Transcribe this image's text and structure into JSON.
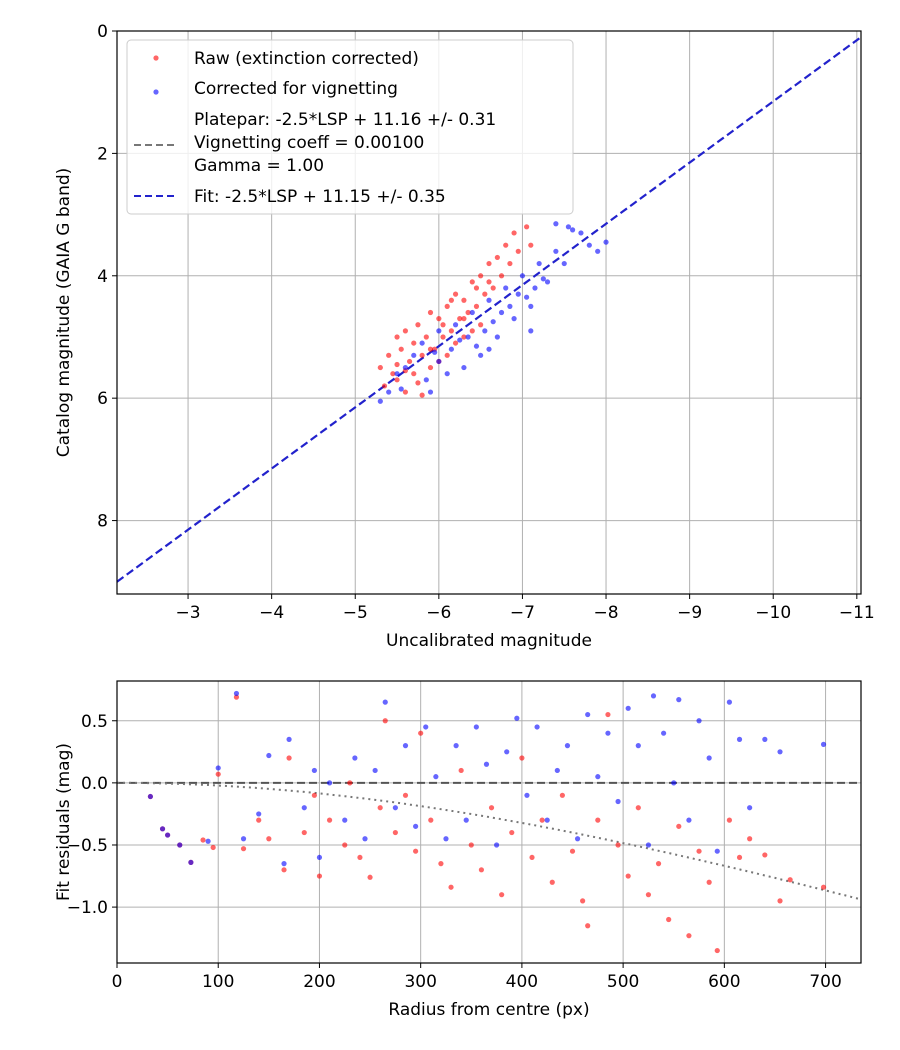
{
  "colors": {
    "raw": "#ff0000",
    "corrected": "#0000ff",
    "fit": "#2222cc",
    "platepar": "#777777",
    "grid": "#b0b0b0"
  },
  "chart_data": [
    {
      "type": "scatter",
      "xlabel": "Uncalibrated magnitude",
      "ylabel": "Catalog magnitude (GAIA G band)",
      "xlim": [
        -2.15,
        -11.05
      ],
      "ylim": [
        9.2,
        0
      ],
      "x_inverted": true,
      "y_inverted": true,
      "grid": true,
      "legend_position": "top-left",
      "xticks": [
        -3,
        -4,
        -5,
        -6,
        -7,
        -8,
        -9,
        -10,
        -11
      ],
      "xtick_labels": [
        "−3",
        "−4",
        "−5",
        "−6",
        "−7",
        "−8",
        "−9",
        "−10",
        "−11"
      ],
      "yticks": [
        0,
        2,
        4,
        6,
        8
      ],
      "ytick_labels": [
        "0",
        "2",
        "4",
        "6",
        "8"
      ],
      "legend": {
        "raw": "Raw (extinction corrected)",
        "corrected": "Corrected for vignetting",
        "platepar": [
          "Platepar: -2.5*LSP + 11.16 +/- 0.31",
          "Vignetting coeff = 0.00100",
          "Gamma = 1.00"
        ],
        "fit": "Fit: -2.5*LSP + 11.15 +/- 0.35"
      },
      "platepar_line": {
        "intercept": 11.16,
        "slope": 1.0,
        "sigma": 0.31
      },
      "fit_line": {
        "intercept": 11.15,
        "slope": 1.0,
        "sigma": 0.35
      },
      "series": [
        {
          "name": "Raw (extinction corrected)",
          "color": "#ff0000",
          "points": [
            [
              -5.3,
              5.5
            ],
            [
              -5.35,
              5.8
            ],
            [
              -5.4,
              5.3
            ],
            [
              -5.45,
              5.6
            ],
            [
              -5.5,
              5.0
            ],
            [
              -5.5,
              5.7
            ],
            [
              -5.55,
              5.2
            ],
            [
              -5.6,
              5.9
            ],
            [
              -5.6,
              4.9
            ],
            [
              -5.65,
              5.4
            ],
            [
              -5.7,
              5.1
            ],
            [
              -5.7,
              5.6
            ],
            [
              -5.75,
              4.8
            ],
            [
              -5.8,
              5.3
            ],
            [
              -5.8,
              5.95
            ],
            [
              -5.85,
              5.0
            ],
            [
              -5.9,
              4.6
            ],
            [
              -5.9,
              5.5
            ],
            [
              -5.95,
              5.2
            ],
            [
              -6.0,
              4.7
            ],
            [
              -6.0,
              5.4
            ],
            [
              -6.05,
              5.0
            ],
            [
              -6.1,
              4.5
            ],
            [
              -6.1,
              5.3
            ],
            [
              -6.15,
              4.9
            ],
            [
              -6.2,
              4.3
            ],
            [
              -6.2,
              5.1
            ],
            [
              -6.25,
              4.7
            ],
            [
              -6.3,
              4.4
            ],
            [
              -6.3,
              5.0
            ],
            [
              -6.35,
              4.6
            ],
            [
              -6.4,
              4.1
            ],
            [
              -6.45,
              4.5
            ],
            [
              -6.5,
              4.0
            ],
            [
              -6.5,
              4.8
            ],
            [
              -6.55,
              4.3
            ],
            [
              -6.6,
              3.8
            ],
            [
              -6.65,
              4.2
            ],
            [
              -6.7,
              3.7
            ],
            [
              -6.75,
              4.0
            ],
            [
              -6.8,
              3.5
            ],
            [
              -6.85,
              3.8
            ],
            [
              -6.9,
              3.3
            ],
            [
              -6.95,
              3.6
            ],
            [
              -7.05,
              3.2
            ],
            [
              -7.1,
              3.5
            ],
            [
              -5.6,
              5.55
            ],
            [
              -5.9,
              5.2
            ],
            [
              -6.05,
              4.8
            ],
            [
              -6.3,
              4.7
            ],
            [
              -6.6,
              4.1
            ],
            [
              -6.4,
              4.9
            ],
            [
              -5.75,
              5.75
            ],
            [
              -6.15,
              4.4
            ],
            [
              -6.45,
              4.2
            ],
            [
              -5.5,
              5.45
            ]
          ]
        },
        {
          "name": "Corrected for vignetting",
          "color": "#0000ff",
          "points": [
            [
              -5.3,
              6.05
            ],
            [
              -5.4,
              5.9
            ],
            [
              -5.5,
              5.6
            ],
            [
              -5.6,
              5.5
            ],
            [
              -5.7,
              5.3
            ],
            [
              -5.8,
              5.1
            ],
            [
              -5.85,
              5.7
            ],
            [
              -5.9,
              5.9
            ],
            [
              -6.0,
              5.4
            ],
            [
              -6.0,
              4.9
            ],
            [
              -6.1,
              5.6
            ],
            [
              -6.15,
              5.2
            ],
            [
              -6.2,
              4.8
            ],
            [
              -6.3,
              5.5
            ],
            [
              -6.35,
              5.0
            ],
            [
              -6.4,
              4.6
            ],
            [
              -6.5,
              5.3
            ],
            [
              -6.55,
              4.9
            ],
            [
              -6.6,
              4.4
            ],
            [
              -6.7,
              5.0
            ],
            [
              -6.75,
              4.6
            ],
            [
              -6.8,
              4.2
            ],
            [
              -6.9,
              4.7
            ],
            [
              -6.95,
              4.3
            ],
            [
              -7.0,
              4.0
            ],
            [
              -7.1,
              4.5
            ],
            [
              -7.15,
              4.2
            ],
            [
              -7.2,
              3.8
            ],
            [
              -7.3,
              4.1
            ],
            [
              -7.4,
              3.6
            ],
            [
              -7.5,
              3.8
            ],
            [
              -7.55,
              3.2
            ],
            [
              -7.7,
              3.3
            ],
            [
              -7.8,
              3.5
            ],
            [
              -7.9,
              3.6
            ],
            [
              -8.0,
              3.45
            ],
            [
              -7.4,
              3.15
            ],
            [
              -7.6,
              3.25
            ],
            [
              -5.95,
              5.25
            ],
            [
              -6.25,
              5.05
            ],
            [
              -6.65,
              4.75
            ],
            [
              -7.05,
              4.35
            ],
            [
              -5.55,
              5.85
            ],
            [
              -6.45,
              5.15
            ],
            [
              -6.85,
              4.5
            ],
            [
              -7.25,
              4.05
            ],
            [
              -7.1,
              4.9
            ],
            [
              -6.6,
              5.2
            ]
          ]
        }
      ]
    },
    {
      "type": "scatter",
      "xlabel": "Radius from centre (px)",
      "ylabel": "Fit residuals (mag)",
      "xlim": [
        0,
        735
      ],
      "ylim": [
        -1.45,
        0.82
      ],
      "grid": true,
      "xticks": [
        0,
        100,
        200,
        300,
        400,
        500,
        600,
        700
      ],
      "xtick_labels": [
        "0",
        "100",
        "200",
        "300",
        "400",
        "500",
        "600",
        "700"
      ],
      "yticks": [
        0.5,
        0.0,
        -0.5,
        -1.0
      ],
      "ytick_labels": [
        "0.5",
        "0.0",
        "−0.5",
        "−1.0"
      ],
      "zero_line": 0.0,
      "vignetting_curve": {
        "coeff": 0.001,
        "x_max": 735
      },
      "series": [
        {
          "name": "Raw (extinction corrected)",
          "color": "#ff0000",
          "points": [
            [
              33,
              -0.11
            ],
            [
              45,
              -0.37
            ],
            [
              50,
              -0.42
            ],
            [
              62,
              -0.5
            ],
            [
              73,
              -0.64
            ],
            [
              85,
              -0.46
            ],
            [
              95,
              -0.52
            ],
            [
              100,
              0.07
            ],
            [
              118,
              0.69
            ],
            [
              125,
              -0.53
            ],
            [
              140,
              -0.3
            ],
            [
              150,
              -0.45
            ],
            [
              165,
              -0.7
            ],
            [
              170,
              0.2
            ],
            [
              185,
              -0.4
            ],
            [
              195,
              -0.1
            ],
            [
              200,
              -0.75
            ],
            [
              210,
              -0.3
            ],
            [
              225,
              -0.5
            ],
            [
              230,
              0.0
            ],
            [
              240,
              -0.6
            ],
            [
              250,
              -0.76
            ],
            [
              260,
              -0.2
            ],
            [
              265,
              0.5
            ],
            [
              275,
              -0.4
            ],
            [
              285,
              -0.1
            ],
            [
              295,
              -0.55
            ],
            [
              300,
              0.4
            ],
            [
              310,
              -0.3
            ],
            [
              320,
              -0.65
            ],
            [
              330,
              -0.84
            ],
            [
              340,
              0.1
            ],
            [
              350,
              -0.5
            ],
            [
              360,
              -0.7
            ],
            [
              370,
              -0.2
            ],
            [
              380,
              -0.9
            ],
            [
              390,
              -0.4
            ],
            [
              400,
              0.2
            ],
            [
              410,
              -0.6
            ],
            [
              420,
              -0.3
            ],
            [
              430,
              -0.8
            ],
            [
              440,
              -0.1
            ],
            [
              450,
              -0.55
            ],
            [
              460,
              -0.95
            ],
            [
              465,
              -1.15
            ],
            [
              475,
              -0.3
            ],
            [
              485,
              0.55
            ],
            [
              495,
              -0.5
            ],
            [
              505,
              -0.75
            ],
            [
              515,
              -0.2
            ],
            [
              525,
              -0.9
            ],
            [
              535,
              -0.65
            ],
            [
              545,
              -1.1
            ],
            [
              555,
              -0.35
            ],
            [
              565,
              -1.23
            ],
            [
              575,
              -0.55
            ],
            [
              585,
              -0.8
            ],
            [
              593,
              -1.35
            ],
            [
              605,
              -0.3
            ],
            [
              615,
              -0.6
            ],
            [
              625,
              -0.45
            ],
            [
              640,
              -0.58
            ],
            [
              655,
              -0.95
            ],
            [
              665,
              -0.78
            ],
            [
              698,
              -0.84
            ]
          ]
        },
        {
          "name": "Corrected for vignetting",
          "color": "#0000ff",
          "points": [
            [
              33,
              -0.11
            ],
            [
              45,
              -0.37
            ],
            [
              50,
              -0.42
            ],
            [
              62,
              -0.5
            ],
            [
              73,
              -0.64
            ],
            [
              90,
              -0.47
            ],
            [
              100,
              0.12
            ],
            [
              118,
              0.72
            ],
            [
              125,
              -0.45
            ],
            [
              140,
              -0.25
            ],
            [
              150,
              0.22
            ],
            [
              165,
              -0.65
            ],
            [
              170,
              0.35
            ],
            [
              185,
              -0.2
            ],
            [
              195,
              0.1
            ],
            [
              200,
              -0.6
            ],
            [
              210,
              0.0
            ],
            [
              225,
              -0.3
            ],
            [
              235,
              0.2
            ],
            [
              245,
              -0.45
            ],
            [
              255,
              0.1
            ],
            [
              265,
              0.65
            ],
            [
              275,
              -0.2
            ],
            [
              285,
              0.3
            ],
            [
              295,
              -0.35
            ],
            [
              305,
              0.45
            ],
            [
              315,
              0.05
            ],
            [
              325,
              -0.45
            ],
            [
              335,
              0.3
            ],
            [
              345,
              -0.3
            ],
            [
              355,
              0.45
            ],
            [
              365,
              0.15
            ],
            [
              375,
              -0.5
            ],
            [
              385,
              0.25
            ],
            [
              395,
              0.52
            ],
            [
              405,
              -0.1
            ],
            [
              415,
              0.45
            ],
            [
              425,
              -0.3
            ],
            [
              435,
              0.1
            ],
            [
              445,
              0.3
            ],
            [
              455,
              -0.45
            ],
            [
              465,
              0.55
            ],
            [
              475,
              0.05
            ],
            [
              485,
              0.4
            ],
            [
              495,
              -0.15
            ],
            [
              505,
              0.6
            ],
            [
              515,
              0.3
            ],
            [
              525,
              -0.5
            ],
            [
              530,
              0.7
            ],
            [
              540,
              0.4
            ],
            [
              550,
              0.0
            ],
            [
              555,
              0.67
            ],
            [
              565,
              -0.3
            ],
            [
              575,
              0.5
            ],
            [
              585,
              0.2
            ],
            [
              593,
              -0.55
            ],
            [
              605,
              0.65
            ],
            [
              615,
              0.35
            ],
            [
              625,
              -0.2
            ],
            [
              640,
              0.35
            ],
            [
              655,
              0.25
            ],
            [
              698,
              0.31
            ]
          ]
        }
      ]
    }
  ]
}
